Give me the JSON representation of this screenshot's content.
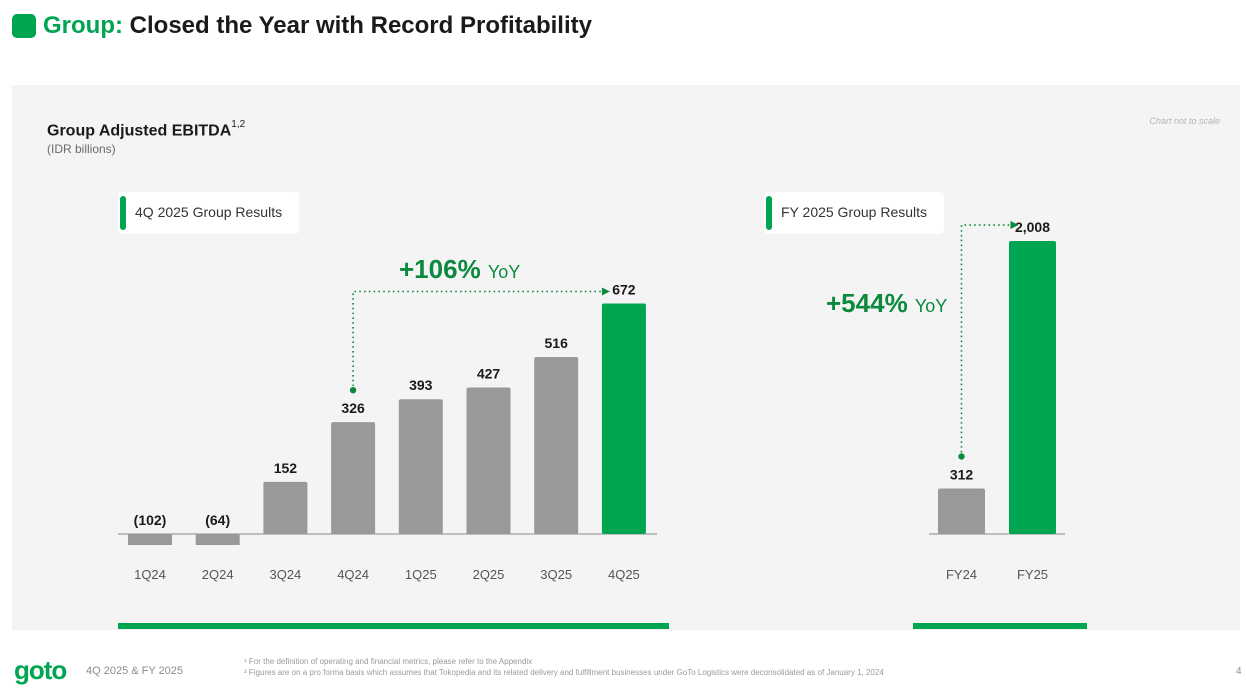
{
  "header": {
    "title_accent": "Group:",
    "title_rest": "Closed the Year with Record Profitability"
  },
  "chart_title": {
    "main": "Group Adjusted EBITDA",
    "superscript": "1,2",
    "unit": "(IDR billions)"
  },
  "scale_note": "Chart not to scale",
  "quarterly_box_label": "4Q 2025 Group Results",
  "annual_box_label": "FY 2025 Group Results",
  "quarterly_yoy": {
    "value": "+106%",
    "unit": "YoY"
  },
  "annual_yoy": {
    "value": "+544%",
    "unit": "YoY"
  },
  "colors": {
    "accent": "#00a551",
    "bar_gray": "#999999",
    "highlight_bar": "#00a551",
    "yoy_text": "#0b8a3e"
  },
  "chart_data": [
    {
      "type": "bar",
      "categories": [
        "1Q24",
        "2Q24",
        "3Q24",
        "4Q24",
        "1Q25",
        "2Q25",
        "3Q25",
        "4Q25"
      ],
      "values": [
        -102,
        -64,
        152,
        326,
        393,
        427,
        516,
        672
      ],
      "value_labels": [
        "(102)",
        "(64)",
        "152",
        "326",
        "393",
        "427",
        "516",
        "672"
      ],
      "highlight": [
        false,
        false,
        false,
        false,
        false,
        false,
        false,
        true
      ],
      "annotation": {
        "from": "4Q24",
        "to": "4Q25",
        "text": "+106% YoY"
      }
    },
    {
      "type": "bar",
      "categories": [
        "FY24",
        "FY25"
      ],
      "values": [
        312,
        2008
      ],
      "value_labels": [
        "312",
        "2,008"
      ],
      "highlight": [
        false,
        true
      ],
      "annotation": {
        "from": "FY24",
        "to": "FY25",
        "text": "+544% YoY"
      }
    }
  ],
  "footer": {
    "logo": "goto",
    "period": "4Q 2025 & FY 2025",
    "footnote_1": "¹ For the definition of operating and financial metrics, please refer to the Appendix",
    "footnote_2": "² Figures are on a pro forma basis which assumes that Tokopedia and its related delivery and fulfillment businesses under GoTo Logistics were deconsolidated as of January 1, 2024",
    "page": "4"
  }
}
